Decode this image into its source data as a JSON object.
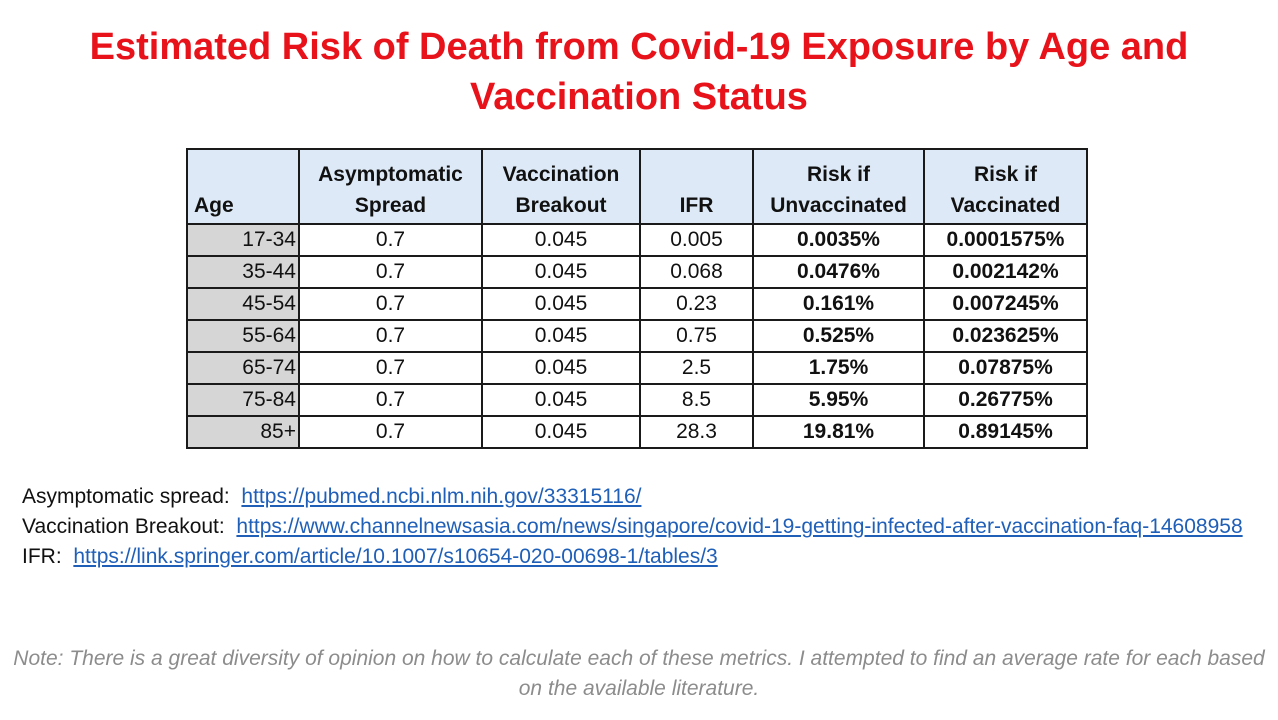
{
  "title": "Estimated Risk of Death from Covid-19 Exposure by Age and Vaccination Status",
  "table": {
    "headers": {
      "age": "Age",
      "asymptomatic": [
        "Asymptomatic",
        "Spread"
      ],
      "vaccination": [
        "Vaccination",
        "Breakout"
      ],
      "ifr": "IFR",
      "unvaccinated": [
        "Risk if",
        "Unvaccinated"
      ],
      "vaccinated": [
        "Risk if",
        "Vaccinated"
      ]
    },
    "rows": [
      {
        "age": "17-34",
        "asym": "0.7",
        "vacc": "0.045",
        "ifr": "0.005",
        "unv": "0.0035%",
        "vac": "0.0001575%"
      },
      {
        "age": "35-44",
        "asym": "0.7",
        "vacc": "0.045",
        "ifr": "0.068",
        "unv": "0.0476%",
        "vac": "0.002142%"
      },
      {
        "age": "45-54",
        "asym": "0.7",
        "vacc": "0.045",
        "ifr": "0.23",
        "unv": "0.161%",
        "vac": "0.007245%"
      },
      {
        "age": "55-64",
        "asym": "0.7",
        "vacc": "0.045",
        "ifr": "0.75",
        "unv": "0.525%",
        "vac": "0.023625%"
      },
      {
        "age": "65-74",
        "asym": "0.7",
        "vacc": "0.045",
        "ifr": "2.5",
        "unv": "1.75%",
        "vac": "0.07875%"
      },
      {
        "age": "75-84",
        "asym": "0.7",
        "vacc": "0.045",
        "ifr": "8.5",
        "unv": "5.95%",
        "vac": "0.26775%"
      },
      {
        "age": "85+",
        "asym": "0.7",
        "vacc": "0.045",
        "ifr": "28.3",
        "unv": "19.81%",
        "vac": "0.89145%"
      }
    ]
  },
  "sources": [
    {
      "label": "Asymptomatic spread:",
      "url": "https://pubmed.ncbi.nlm.nih.gov/33315116/"
    },
    {
      "label": "Vaccination Breakout:",
      "url": "https://www.channelnewsasia.com/news/singapore/covid-19-getting-infected-after-vaccination-faq-14608958"
    },
    {
      "label": "IFR:",
      "url": "https://link.springer.com/article/10.1007/s10654-020-00698-1/tables/3"
    }
  ],
  "note": "Note:  There is a great diversity of opinion on how to calculate each of these metrics.  I attempted to find an average rate for each based on the available literature.",
  "colors": {
    "title": "#e8121b",
    "header_bg": "#dde9f6",
    "age_bg": "#d6d6d6",
    "link": "#1f5fb8",
    "note": "#8c8c8c"
  }
}
